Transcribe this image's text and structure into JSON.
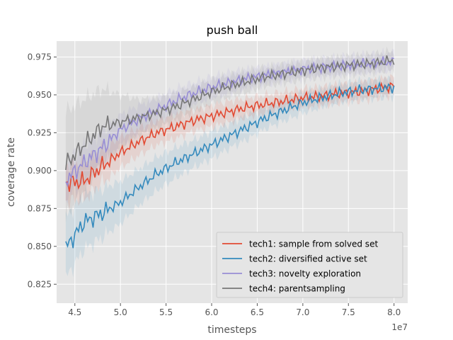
{
  "chart_data": {
    "type": "line",
    "title": "push ball",
    "xlabel": "timesteps",
    "ylabel": "coverage rate",
    "x_offset_label": "1e7",
    "xlim": [
      4.3,
      8.15
    ],
    "ylim": [
      0.8125,
      0.9855
    ],
    "x_ticks": [
      4.5,
      5.0,
      5.5,
      6.0,
      6.5,
      7.0,
      7.5,
      8.0
    ],
    "x_tick_labels": [
      "4.5",
      "5.0",
      "5.5",
      "6.0",
      "6.5",
      "7.0",
      "7.5",
      "8.0"
    ],
    "y_ticks": [
      0.825,
      0.85,
      0.875,
      0.9,
      0.925,
      0.95,
      0.975
    ],
    "y_tick_labels": [
      "0.825",
      "0.850",
      "0.875",
      "0.900",
      "0.925",
      "0.950",
      "0.975"
    ],
    "grid": true,
    "background": "#e5e5e5",
    "legend_position": "lower-right",
    "series": [
      {
        "name": "tech1: sample from solved set",
        "color": "#e24a33",
        "x": [
          4.4,
          4.6,
          4.8,
          5.0,
          5.2,
          5.4,
          5.6,
          5.8,
          6.0,
          6.2,
          6.4,
          6.6,
          6.8,
          7.0,
          7.2,
          7.4,
          7.6,
          7.8,
          8.0
        ],
        "y": [
          0.892,
          0.893,
          0.903,
          0.912,
          0.919,
          0.925,
          0.929,
          0.933,
          0.936,
          0.939,
          0.942,
          0.944,
          0.946,
          0.948,
          0.949,
          0.951,
          0.952,
          0.954,
          0.956
        ],
        "band": [
          0.012,
          0.012,
          0.011,
          0.01,
          0.009,
          0.008,
          0.008,
          0.007,
          0.007,
          0.007,
          0.006,
          0.006,
          0.006,
          0.006,
          0.006,
          0.006,
          0.006,
          0.006,
          0.006
        ]
      },
      {
        "name": "tech2: diversified active set",
        "color": "#348abd",
        "x": [
          4.4,
          4.6,
          4.8,
          5.0,
          5.2,
          5.4,
          5.6,
          5.8,
          6.0,
          6.2,
          6.4,
          6.6,
          6.8,
          7.0,
          7.2,
          7.4,
          7.6,
          7.8,
          8.0
        ],
        "y": [
          0.849,
          0.866,
          0.872,
          0.879,
          0.889,
          0.898,
          0.905,
          0.911,
          0.917,
          0.923,
          0.929,
          0.935,
          0.94,
          0.945,
          0.948,
          0.951,
          0.953,
          0.954,
          0.955
        ],
        "band": [
          0.02,
          0.018,
          0.016,
          0.014,
          0.012,
          0.011,
          0.01,
          0.009,
          0.009,
          0.008,
          0.008,
          0.007,
          0.007,
          0.007,
          0.006,
          0.006,
          0.006,
          0.006,
          0.006
        ]
      },
      {
        "name": "tech3: novelty exploration",
        "color": "#988ed5",
        "x": [
          4.4,
          4.6,
          4.8,
          5.0,
          5.2,
          5.4,
          5.6,
          5.8,
          6.0,
          6.2,
          6.4,
          6.6,
          6.8,
          7.0,
          7.2,
          7.4,
          7.6,
          7.8,
          8.0
        ],
        "y": [
          0.894,
          0.905,
          0.915,
          0.927,
          0.934,
          0.94,
          0.946,
          0.951,
          0.955,
          0.958,
          0.961,
          0.963,
          0.965,
          0.967,
          0.968,
          0.969,
          0.97,
          0.971,
          0.972
        ],
        "band": [
          0.012,
          0.012,
          0.011,
          0.01,
          0.009,
          0.008,
          0.008,
          0.007,
          0.007,
          0.007,
          0.006,
          0.006,
          0.006,
          0.006,
          0.006,
          0.006,
          0.006,
          0.006,
          0.006
        ]
      },
      {
        "name": "tech4: parentsampling",
        "color": "#777777",
        "x": [
          4.4,
          4.6,
          4.8,
          5.0,
          5.2,
          5.4,
          5.6,
          5.8,
          6.0,
          6.2,
          6.4,
          6.6,
          6.8,
          7.0,
          7.2,
          7.4,
          7.6,
          7.8,
          8.0
        ],
        "y": [
          0.904,
          0.917,
          0.929,
          0.932,
          0.935,
          0.938,
          0.942,
          0.947,
          0.952,
          0.956,
          0.959,
          0.962,
          0.964,
          0.966,
          0.968,
          0.969,
          0.97,
          0.971,
          0.973
        ],
        "band": [
          0.035,
          0.03,
          0.025,
          0.018,
          0.012,
          0.01,
          0.009,
          0.008,
          0.008,
          0.007,
          0.007,
          0.006,
          0.006,
          0.006,
          0.006,
          0.006,
          0.006,
          0.006,
          0.006
        ]
      }
    ]
  }
}
